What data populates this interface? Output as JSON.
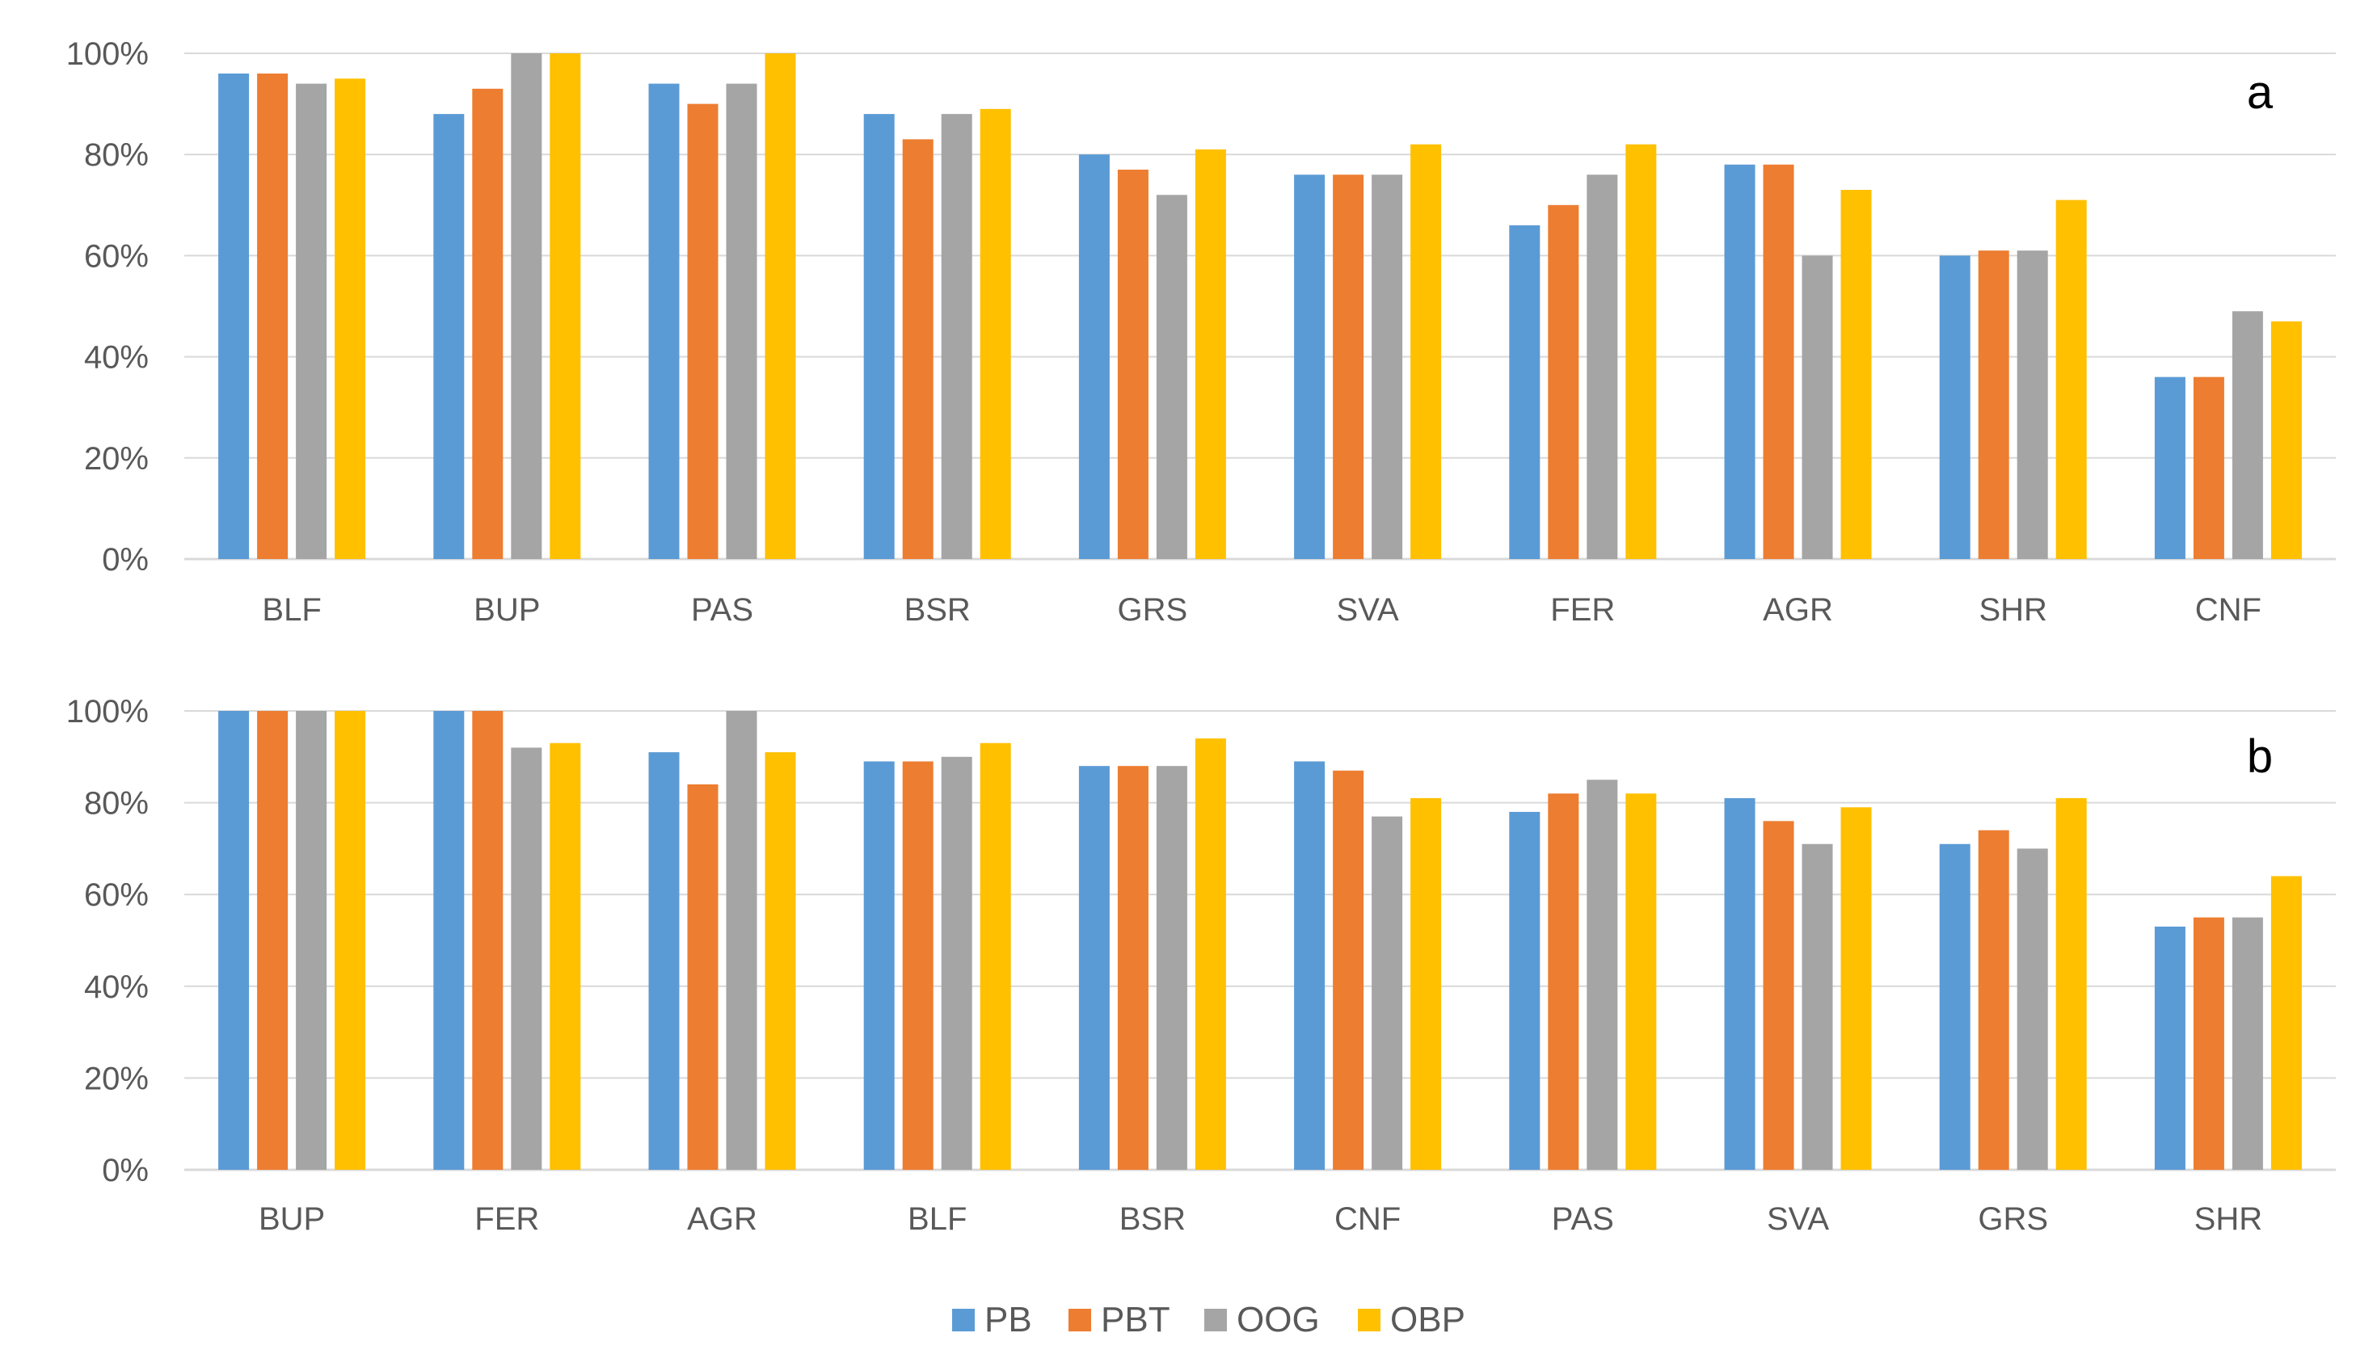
{
  "legend": [
    {
      "name": "PB",
      "color": "#5B9BD5"
    },
    {
      "name": "PBT",
      "color": "#ED7D31"
    },
    {
      "name": "OOG",
      "color": "#A5A5A5"
    },
    {
      "name": "OBP",
      "color": "#FFC000"
    }
  ],
  "chart_data": [
    {
      "type": "bar",
      "panel_label": "a",
      "categories": [
        "BLF",
        "BUP",
        "PAS",
        "BSR",
        "GRS",
        "SVA",
        "FER",
        "AGR",
        "SHR",
        "CNF"
      ],
      "ylim": [
        0,
        100
      ],
      "yticks": [
        "0%",
        "20%",
        "40%",
        "60%",
        "80%",
        "100%"
      ],
      "grid": true,
      "series": [
        {
          "name": "PB",
          "values": [
            96,
            88,
            94,
            88,
            80,
            76,
            66,
            78,
            60,
            36
          ]
        },
        {
          "name": "PBT",
          "values": [
            96,
            93,
            90,
            83,
            77,
            76,
            70,
            78,
            61,
            36
          ]
        },
        {
          "name": "OOG",
          "values": [
            94,
            100,
            94,
            88,
            72,
            76,
            76,
            60,
            61,
            49
          ]
        },
        {
          "name": "OBP",
          "values": [
            95,
            100,
            100,
            89,
            81,
            82,
            82,
            73,
            71,
            47
          ]
        }
      ]
    },
    {
      "type": "bar",
      "panel_label": "b",
      "categories": [
        "BUP",
        "FER",
        "AGR",
        "BLF",
        "BSR",
        "CNF",
        "PAS",
        "SVA",
        "GRS",
        "SHR"
      ],
      "ylim": [
        0,
        100
      ],
      "yticks": [
        "0%",
        "20%",
        "40%",
        "60%",
        "80%",
        "100%"
      ],
      "grid": true,
      "series": [
        {
          "name": "PB",
          "values": [
            100,
            100,
            91,
            89,
            88,
            89,
            78,
            81,
            71,
            53
          ]
        },
        {
          "name": "PBT",
          "values": [
            100,
            100,
            84,
            89,
            88,
            87,
            82,
            76,
            74,
            55
          ]
        },
        {
          "name": "OOG",
          "values": [
            100,
            92,
            100,
            90,
            88,
            77,
            85,
            71,
            70,
            55
          ]
        },
        {
          "name": "OBP",
          "values": [
            100,
            93,
            91,
            93,
            94,
            81,
            82,
            79,
            81,
            64
          ]
        }
      ]
    }
  ]
}
